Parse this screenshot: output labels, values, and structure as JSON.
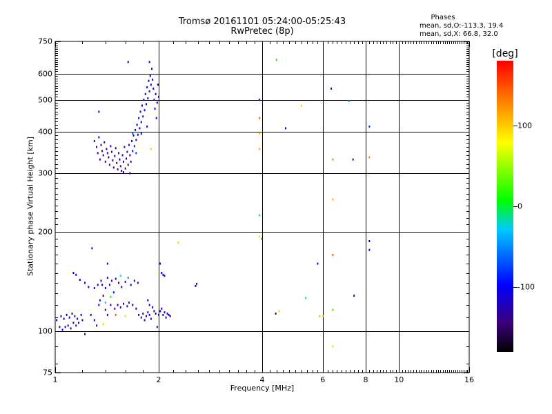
{
  "header": {
    "title_line1": "Tromsø 20161101 05:24:00-05:25:43",
    "title_line2": "RwPretec (8p)",
    "stats_title": "Phases",
    "stats_line1": "mean, sd,O:-113.3, 19.4",
    "stats_line2": "mean, sd,X:  66.8, 32.0"
  },
  "chart_data": {
    "type": "scatter",
    "xlabel": "Frequency [MHz]",
    "ylabel": "Stationary phase Virtual Height [km]",
    "x_scale": "log",
    "y_scale": "log",
    "xlim": [
      1,
      16
    ],
    "ylim": [
      75,
      750
    ],
    "x_ticks": [
      1,
      2,
      4,
      6,
      8,
      10,
      16
    ],
    "y_ticks": [
      75,
      100,
      200,
      300,
      400,
      500,
      600,
      750
    ],
    "grid": true,
    "colorbar": {
      "label": "[deg]",
      "range": [
        -180,
        180
      ],
      "ticks": [
        100,
        0,
        -100
      ],
      "colors": [
        "#000000",
        "#3b007a",
        "#0000ff",
        "#00c8ff",
        "#00ff00",
        "#ffff00",
        "#ff8000",
        "#ff0000"
      ]
    },
    "points": [
      {
        "x": 1.01,
        "y": 108,
        "c": -110
      },
      {
        "x": 1.03,
        "y": 103,
        "c": -100
      },
      {
        "x": 1.04,
        "y": 111,
        "c": -120
      },
      {
        "x": 1.05,
        "y": 101,
        "c": -115
      },
      {
        "x": 1.06,
        "y": 109,
        "c": -105
      },
      {
        "x": 1.07,
        "y": 103,
        "c": -140
      },
      {
        "x": 1.08,
        "y": 112,
        "c": -110
      },
      {
        "x": 1.09,
        "y": 104,
        "c": -125
      },
      {
        "x": 1.1,
        "y": 110,
        "c": -100
      },
      {
        "x": 1.11,
        "y": 102,
        "c": -135
      },
      {
        "x": 1.12,
        "y": 113,
        "c": -110
      },
      {
        "x": 1.13,
        "y": 106,
        "c": -120
      },
      {
        "x": 1.14,
        "y": 111,
        "c": -100
      },
      {
        "x": 1.15,
        "y": 104,
        "c": -140
      },
      {
        "x": 1.16,
        "y": 109,
        "c": -110
      },
      {
        "x": 1.17,
        "y": 106,
        "c": -120
      },
      {
        "x": 1.19,
        "y": 112,
        "c": -110
      },
      {
        "x": 1.2,
        "y": 108,
        "c": -130
      },
      {
        "x": 1.22,
        "y": 98,
        "c": -140
      },
      {
        "x": 1.13,
        "y": 150,
        "c": -105
      },
      {
        "x": 1.15,
        "y": 148,
        "c": -110
      },
      {
        "x": 1.18,
        "y": 143,
        "c": -120
      },
      {
        "x": 1.22,
        "y": 140,
        "c": -100
      },
      {
        "x": 1.25,
        "y": 136,
        "c": -110
      },
      {
        "x": 1.27,
        "y": 112,
        "c": -140
      },
      {
        "x": 1.3,
        "y": 108,
        "c": -120
      },
      {
        "x": 1.32,
        "y": 104,
        "c": -130
      },
      {
        "x": 1.28,
        "y": 178,
        "c": -120
      },
      {
        "x": 1.3,
        "y": 135,
        "c": -110
      },
      {
        "x": 1.33,
        "y": 138,
        "c": -100
      },
      {
        "x": 1.34,
        "y": 120,
        "c": -105
      },
      {
        "x": 1.35,
        "y": 124,
        "c": -90
      },
      {
        "x": 1.36,
        "y": 142,
        "c": -125
      },
      {
        "x": 1.37,
        "y": 138,
        "c": -110
      },
      {
        "x": 1.38,
        "y": 128,
        "c": -140
      },
      {
        "x": 1.4,
        "y": 135,
        "c": -105
      },
      {
        "x": 1.4,
        "y": 116,
        "c": -120
      },
      {
        "x": 1.42,
        "y": 145,
        "c": -110
      },
      {
        "x": 1.42,
        "y": 112,
        "c": -130
      },
      {
        "x": 1.44,
        "y": 138,
        "c": -100
      },
      {
        "x": 1.45,
        "y": 120,
        "c": -125
      },
      {
        "x": 1.46,
        "y": 142,
        "c": -110
      },
      {
        "x": 1.48,
        "y": 131,
        "c": -90
      },
      {
        "x": 1.49,
        "y": 117,
        "c": -140
      },
      {
        "x": 1.5,
        "y": 144,
        "c": -110
      },
      {
        "x": 1.52,
        "y": 120,
        "c": -120
      },
      {
        "x": 1.53,
        "y": 140,
        "c": -105
      },
      {
        "x": 1.55,
        "y": 118,
        "c": -130
      },
      {
        "x": 1.56,
        "y": 136,
        "c": -110
      },
      {
        "x": 1.58,
        "y": 121,
        "c": -125
      },
      {
        "x": 1.6,
        "y": 141,
        "c": -100
      },
      {
        "x": 1.62,
        "y": 119,
        "c": -115
      },
      {
        "x": 1.63,
        "y": 145,
        "c": -50
      },
      {
        "x": 1.64,
        "y": 122,
        "c": -130
      },
      {
        "x": 1.66,
        "y": 138,
        "c": -110
      },
      {
        "x": 1.68,
        "y": 120,
        "c": -120
      },
      {
        "x": 1.7,
        "y": 142,
        "c": -105
      },
      {
        "x": 1.72,
        "y": 117,
        "c": -125
      },
      {
        "x": 1.74,
        "y": 140,
        "c": -110
      },
      {
        "x": 1.45,
        "y": 127,
        "c": 10
      },
      {
        "x": 1.5,
        "y": 112,
        "c": 150
      },
      {
        "x": 1.38,
        "y": 105,
        "c": 50
      },
      {
        "x": 1.4,
        "y": 122,
        "c": -30
      },
      {
        "x": 1.55,
        "y": 147,
        "c": -20
      },
      {
        "x": 1.6,
        "y": 111,
        "c": 60
      },
      {
        "x": 1.42,
        "y": 160,
        "c": -110
      },
      {
        "x": 1.75,
        "y": 112,
        "c": -110
      },
      {
        "x": 1.78,
        "y": 110,
        "c": -120
      },
      {
        "x": 1.8,
        "y": 113,
        "c": -105
      },
      {
        "x": 1.82,
        "y": 108,
        "c": -130
      },
      {
        "x": 1.84,
        "y": 111,
        "c": -110
      },
      {
        "x": 1.86,
        "y": 114,
        "c": -100
      },
      {
        "x": 1.88,
        "y": 112,
        "c": -125
      },
      {
        "x": 1.9,
        "y": 109,
        "c": -110
      },
      {
        "x": 1.92,
        "y": 118,
        "c": -120
      },
      {
        "x": 1.94,
        "y": 115,
        "c": -105
      },
      {
        "x": 1.96,
        "y": 113,
        "c": -110
      },
      {
        "x": 1.98,
        "y": 103,
        "c": -140
      },
      {
        "x": 2.0,
        "y": 112,
        "c": -120
      },
      {
        "x": 2.02,
        "y": 115,
        "c": -110
      },
      {
        "x": 2.04,
        "y": 117,
        "c": -100
      },
      {
        "x": 2.06,
        "y": 112,
        "c": -125
      },
      {
        "x": 2.08,
        "y": 114,
        "c": -110
      },
      {
        "x": 2.1,
        "y": 110,
        "c": -120
      },
      {
        "x": 2.12,
        "y": 113,
        "c": -105
      },
      {
        "x": 2.14,
        "y": 112,
        "c": -110
      },
      {
        "x": 2.16,
        "y": 111,
        "c": -100
      },
      {
        "x": 2.02,
        "y": 160,
        "c": -110
      },
      {
        "x": 2.04,
        "y": 150,
        "c": -100
      },
      {
        "x": 2.06,
        "y": 148,
        "c": -120
      },
      {
        "x": 2.08,
        "y": 147,
        "c": -110
      },
      {
        "x": 1.86,
        "y": 124,
        "c": -110
      },
      {
        "x": 1.88,
        "y": 120,
        "c": -100
      },
      {
        "x": 2.56,
        "y": 137,
        "c": -110
      },
      {
        "x": 2.58,
        "y": 139,
        "c": -120
      },
      {
        "x": 2.28,
        "y": 185,
        "c": 100
      },
      {
        "x": 1.3,
        "y": 375,
        "c": -130
      },
      {
        "x": 1.32,
        "y": 360,
        "c": -140
      },
      {
        "x": 1.33,
        "y": 345,
        "c": -130
      },
      {
        "x": 1.34,
        "y": 385,
        "c": -120
      },
      {
        "x": 1.35,
        "y": 330,
        "c": -135
      },
      {
        "x": 1.36,
        "y": 365,
        "c": -140
      },
      {
        "x": 1.37,
        "y": 350,
        "c": -125
      },
      {
        "x": 1.38,
        "y": 340,
        "c": -130
      },
      {
        "x": 1.39,
        "y": 372,
        "c": -140
      },
      {
        "x": 1.4,
        "y": 325,
        "c": -135
      },
      {
        "x": 1.41,
        "y": 355,
        "c": -120
      },
      {
        "x": 1.42,
        "y": 345,
        "c": -130
      },
      {
        "x": 1.43,
        "y": 335,
        "c": -140
      },
      {
        "x": 1.44,
        "y": 318,
        "c": -135
      },
      {
        "x": 1.45,
        "y": 362,
        "c": -125
      },
      {
        "x": 1.46,
        "y": 348,
        "c": -130
      },
      {
        "x": 1.47,
        "y": 328,
        "c": -140
      },
      {
        "x": 1.48,
        "y": 312,
        "c": -135
      },
      {
        "x": 1.49,
        "y": 338,
        "c": -120
      },
      {
        "x": 1.5,
        "y": 357,
        "c": -130
      },
      {
        "x": 1.51,
        "y": 322,
        "c": -140
      },
      {
        "x": 1.52,
        "y": 308,
        "c": -135
      },
      {
        "x": 1.53,
        "y": 345,
        "c": -125
      },
      {
        "x": 1.54,
        "y": 330,
        "c": -130
      },
      {
        "x": 1.55,
        "y": 315,
        "c": -140
      },
      {
        "x": 1.56,
        "y": 305,
        "c": -135
      },
      {
        "x": 1.57,
        "y": 340,
        "c": -120
      },
      {
        "x": 1.58,
        "y": 325,
        "c": -130
      },
      {
        "x": 1.59,
        "y": 360,
        "c": -140
      },
      {
        "x": 1.6,
        "y": 310,
        "c": -135
      },
      {
        "x": 1.61,
        "y": 332,
        "c": -125
      },
      {
        "x": 1.62,
        "y": 348,
        "c": -130
      },
      {
        "x": 1.63,
        "y": 318,
        "c": -140
      },
      {
        "x": 1.64,
        "y": 365,
        "c": -120
      },
      {
        "x": 1.65,
        "y": 340,
        "c": -110
      },
      {
        "x": 1.66,
        "y": 325,
        "c": -125
      },
      {
        "x": 1.67,
        "y": 375,
        "c": -100
      },
      {
        "x": 1.68,
        "y": 350,
        "c": -115
      },
      {
        "x": 1.69,
        "y": 390,
        "c": -105
      },
      {
        "x": 1.7,
        "y": 362,
        "c": -110
      },
      {
        "x": 1.71,
        "y": 405,
        "c": -100
      },
      {
        "x": 1.72,
        "y": 378,
        "c": -115
      },
      {
        "x": 1.73,
        "y": 420,
        "c": -105
      },
      {
        "x": 1.74,
        "y": 392,
        "c": -110
      },
      {
        "x": 1.75,
        "y": 440,
        "c": -100
      },
      {
        "x": 1.76,
        "y": 410,
        "c": -95
      },
      {
        "x": 1.77,
        "y": 460,
        "c": -105
      },
      {
        "x": 1.78,
        "y": 428,
        "c": -110
      },
      {
        "x": 1.79,
        "y": 480,
        "c": -100
      },
      {
        "x": 1.8,
        "y": 445,
        "c": -115
      },
      {
        "x": 1.81,
        "y": 500,
        "c": -105
      },
      {
        "x": 1.82,
        "y": 465,
        "c": -95
      },
      {
        "x": 1.83,
        "y": 520,
        "c": -110
      },
      {
        "x": 1.84,
        "y": 485,
        "c": -100
      },
      {
        "x": 1.85,
        "y": 545,
        "c": -115
      },
      {
        "x": 1.86,
        "y": 505,
        "c": -105
      },
      {
        "x": 1.87,
        "y": 570,
        "c": -110
      },
      {
        "x": 1.88,
        "y": 530,
        "c": -100
      },
      {
        "x": 1.89,
        "y": 590,
        "c": -120
      },
      {
        "x": 1.9,
        "y": 555,
        "c": -105
      },
      {
        "x": 1.91,
        "y": 620,
        "c": -130
      },
      {
        "x": 1.92,
        "y": 575,
        "c": -110
      },
      {
        "x": 1.93,
        "y": 540,
        "c": -100
      },
      {
        "x": 1.94,
        "y": 500,
        "c": -105
      },
      {
        "x": 1.95,
        "y": 470,
        "c": -110
      },
      {
        "x": 1.96,
        "y": 520,
        "c": -95
      },
      {
        "x": 1.97,
        "y": 440,
        "c": -100
      },
      {
        "x": 1.98,
        "y": 490,
        "c": -110
      },
      {
        "x": 1.99,
        "y": 555,
        "c": -105
      },
      {
        "x": 2.0,
        "y": 510,
        "c": -100
      },
      {
        "x": 1.72,
        "y": 345,
        "c": -80
      },
      {
        "x": 1.68,
        "y": 395,
        "c": -60
      },
      {
        "x": 1.9,
        "y": 355,
        "c": 100
      },
      {
        "x": 1.34,
        "y": 460,
        "c": -110
      },
      {
        "x": 1.63,
        "y": 650,
        "c": -120
      },
      {
        "x": 1.88,
        "y": 650,
        "c": -110
      },
      {
        "x": 1.78,
        "y": 395,
        "c": -115
      },
      {
        "x": 1.85,
        "y": 415,
        "c": -100
      },
      {
        "x": 1.65,
        "y": 300,
        "c": -130
      },
      {
        "x": 1.58,
        "y": 302,
        "c": -125
      },
      {
        "x": 3.93,
        "y": 500,
        "c": -130
      },
      {
        "x": 3.93,
        "y": 440,
        "c": 140
      },
      {
        "x": 3.93,
        "y": 395,
        "c": 100
      },
      {
        "x": 3.93,
        "y": 355,
        "c": 110
      },
      {
        "x": 3.93,
        "y": 224,
        "c": -20
      },
      {
        "x": 3.93,
        "y": 193,
        "c": 60
      },
      {
        "x": 4.0,
        "y": 190,
        "c": -140
      },
      {
        "x": 4.4,
        "y": 660,
        "c": 10
      },
      {
        "x": 4.68,
        "y": 410,
        "c": -100
      },
      {
        "x": 4.38,
        "y": 113,
        "c": -110
      },
      {
        "x": 4.48,
        "y": 115,
        "c": 100
      },
      {
        "x": 5.2,
        "y": 480,
        "c": 100
      },
      {
        "x": 5.35,
        "y": 126,
        "c": -30
      },
      {
        "x": 5.8,
        "y": 160,
        "c": -110
      },
      {
        "x": 5.88,
        "y": 111,
        "c": 110
      },
      {
        "x": 6.0,
        "y": 111,
        "c": 100
      },
      {
        "x": 6.35,
        "y": 540,
        "c": -140
      },
      {
        "x": 6.42,
        "y": 330,
        "c": 130
      },
      {
        "x": 6.42,
        "y": 250,
        "c": 110
      },
      {
        "x": 6.42,
        "y": 170,
        "c": 140
      },
      {
        "x": 6.42,
        "y": 116,
        "c": 20
      },
      {
        "x": 6.42,
        "y": 90,
        "c": 100
      },
      {
        "x": 7.15,
        "y": 495,
        "c": -40
      },
      {
        "x": 7.35,
        "y": 330,
        "c": -110
      },
      {
        "x": 7.4,
        "y": 128,
        "c": -100
      },
      {
        "x": 8.2,
        "y": 415,
        "c": -80
      },
      {
        "x": 8.2,
        "y": 335,
        "c": 130
      },
      {
        "x": 8.2,
        "y": 187,
        "c": -120
      },
      {
        "x": 8.2,
        "y": 176,
        "c": -110
      }
    ]
  }
}
